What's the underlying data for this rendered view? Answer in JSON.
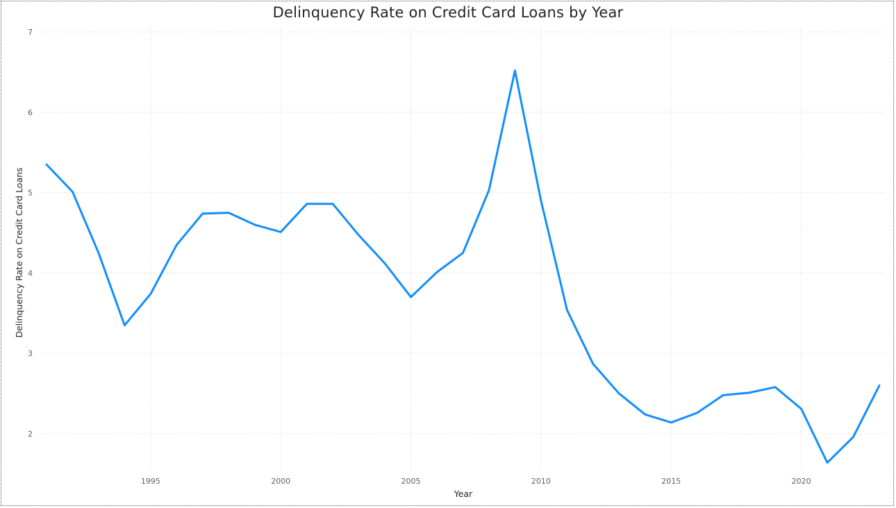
{
  "chart_data": {
    "type": "line",
    "title": "Delinquency Rate on Credit Card Loans by Year",
    "xlabel": "Year",
    "ylabel": "Delinquency Rate on Credit Card Loans",
    "xlim": [
      1991,
      2023
    ],
    "ylim": [
      1.5,
      7
    ],
    "x_ticks": [
      1995,
      2000,
      2005,
      2010,
      2015,
      2020
    ],
    "y_ticks": [
      2,
      3,
      4,
      5,
      6,
      7
    ],
    "grid": true,
    "line_color": "#118DFF",
    "series": [
      {
        "x": [
          1991,
          1992,
          1993,
          1994,
          1995,
          1996,
          1997,
          1998,
          1999,
          2000,
          2001,
          2002,
          2003,
          2004,
          2005,
          2006,
          2007,
          2008,
          2009,
          2010,
          2011,
          2012,
          2013,
          2014,
          2015,
          2016,
          2017,
          2018,
          2019,
          2020,
          2021,
          2022,
          2023
        ],
        "values": [
          5.35,
          5.01,
          4.25,
          3.35,
          3.74,
          4.35,
          4.74,
          4.75,
          4.6,
          4.51,
          4.86,
          4.86,
          4.47,
          4.12,
          3.7,
          4.01,
          4.25,
          5.03,
          6.52,
          4.9,
          3.54,
          2.87,
          2.5,
          2.24,
          2.14,
          2.26,
          2.48,
          2.51,
          2.58,
          2.31,
          1.64,
          1.96,
          2.6
        ]
      }
    ]
  }
}
